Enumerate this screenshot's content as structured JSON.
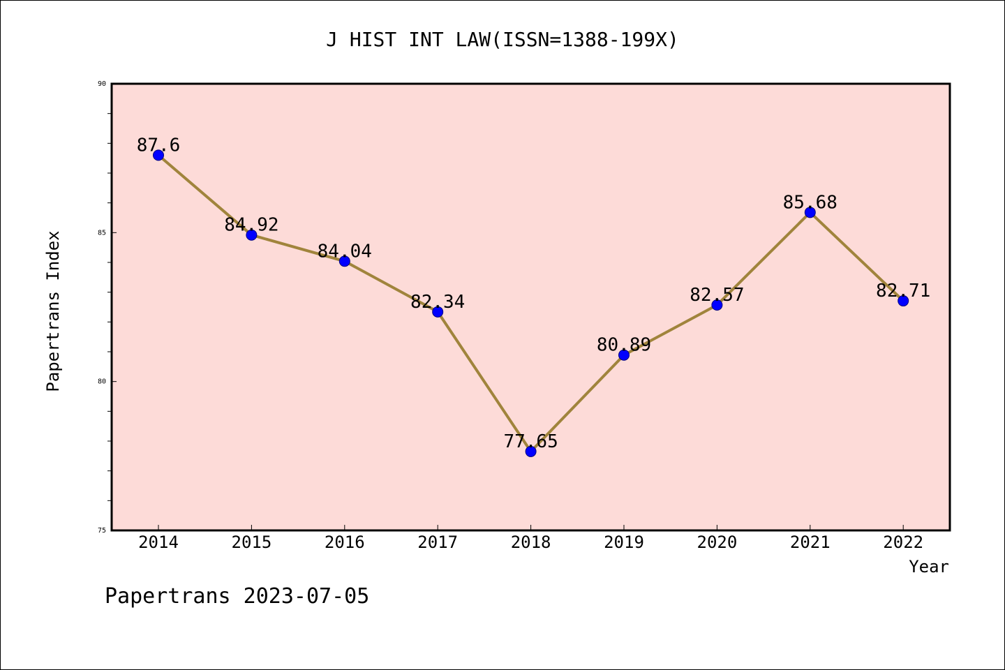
{
  "chart_data": {
    "type": "line",
    "title": "J HIST INT LAW(ISSN=1388-199X)",
    "xlabel": "Year",
    "ylabel": "Papertrans Index",
    "x": [
      "2014",
      "2015",
      "2016",
      "2017",
      "2018",
      "2019",
      "2020",
      "2021",
      "2022"
    ],
    "series": [
      {
        "values": [
          87.6,
          84.92,
          84.04,
          82.34,
          77.65,
          80.89,
          82.57,
          85.68,
          82.71
        ]
      }
    ],
    "data_labels": [
      "87.6",
      "84.92",
      "84.04",
      "82.34",
      "77.65",
      "80.89",
      "82.57",
      "85.68",
      "82.71"
    ],
    "ylim": [
      75,
      90
    ],
    "y_ticks": [
      "75",
      "80",
      "85",
      "90"
    ],
    "grid": false,
    "legend": "none",
    "colors": {
      "plot_background": "#fddbd8",
      "line": "#a0843c",
      "marker": "#0000ff"
    }
  },
  "footer": {
    "note": "Papertrans 2023-07-05"
  }
}
